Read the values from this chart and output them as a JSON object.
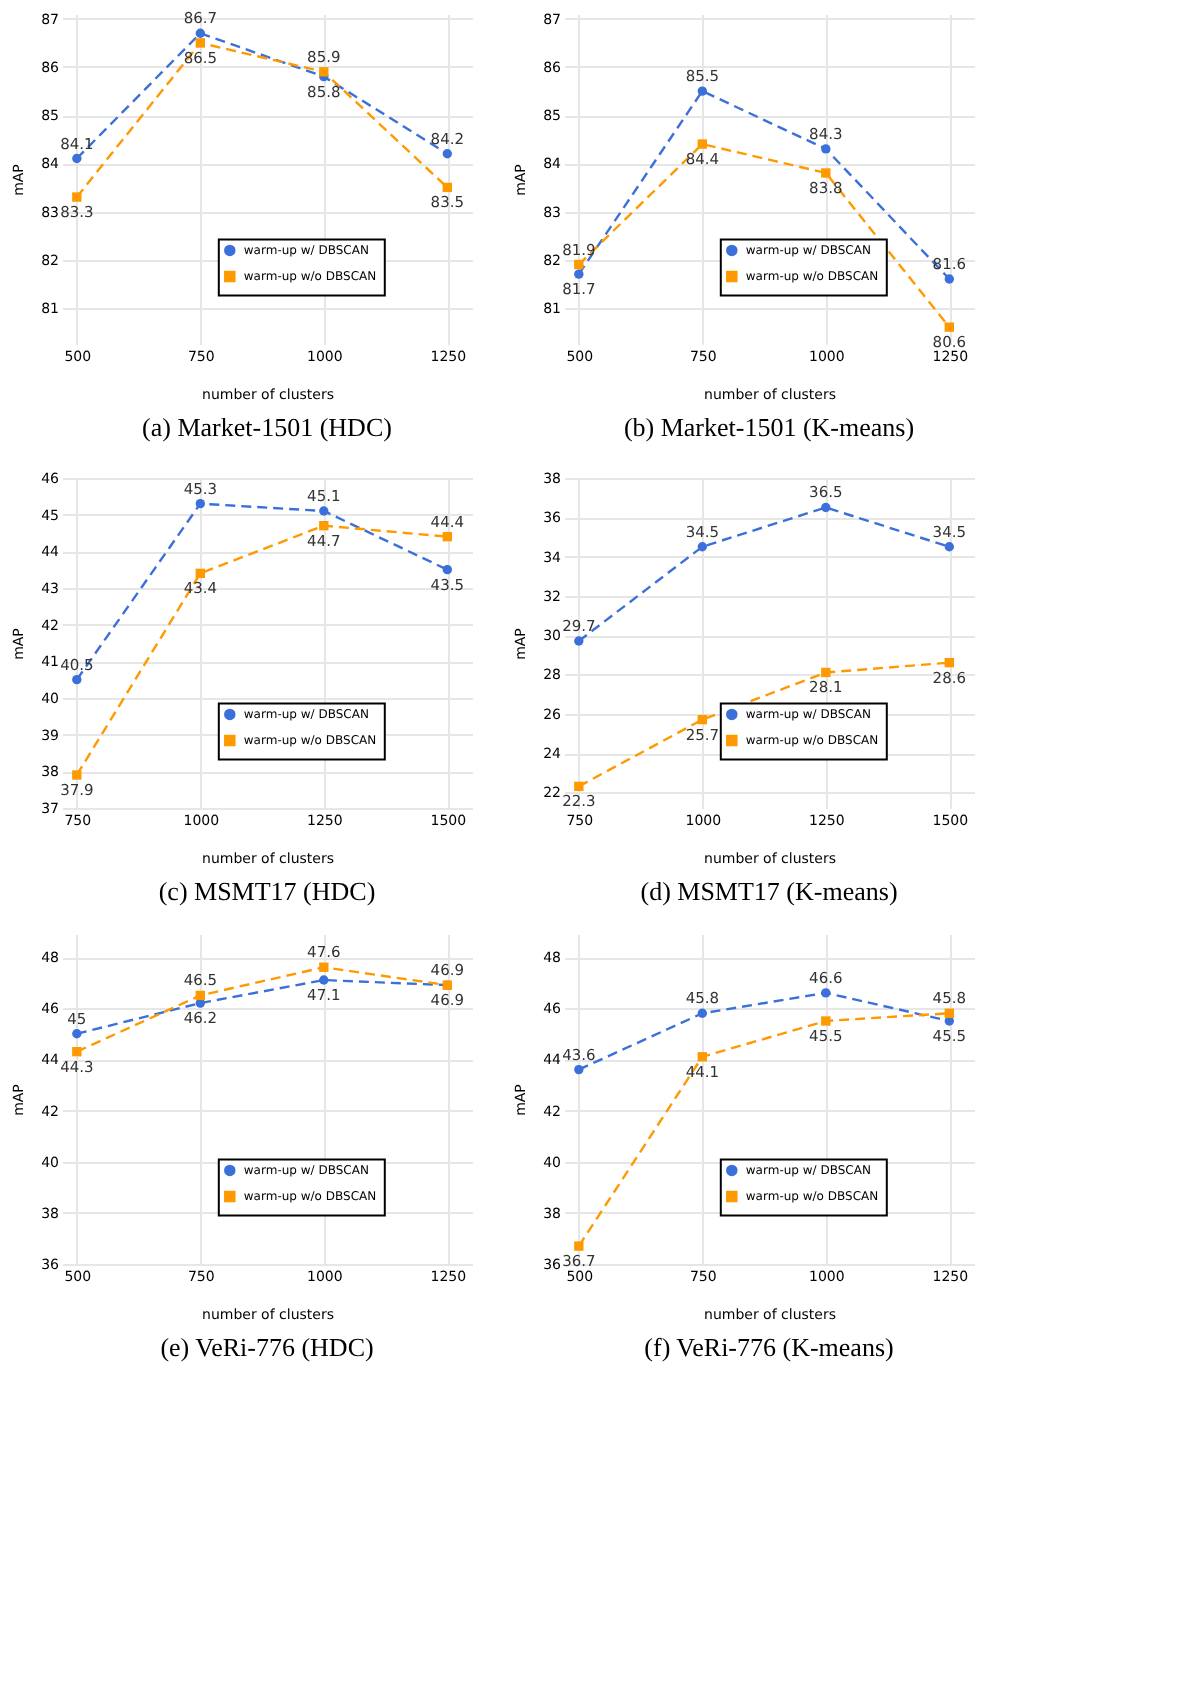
{
  "chart_data": [
    {
      "type": "line",
      "title": "(a) Market-1501 (HDC)",
      "xlabel": "number of clusters",
      "ylabel": "mAP",
      "x": [
        500,
        750,
        1000,
        1250
      ],
      "xlim": [
        470,
        1300
      ],
      "xticks": [
        500,
        750,
        1000,
        1250
      ],
      "ylim": [
        80.25,
        87.1
      ],
      "yticks": [
        81,
        82,
        83,
        84,
        85,
        86,
        87
      ],
      "grid": true,
      "legend": "bottom",
      "data_labels": true,
      "line_style": "dashed",
      "series": [
        {
          "name": "warm-up w/ DBSCAN",
          "color": "#3b6fd9",
          "marker": "circle",
          "values": [
            84.1,
            86.7,
            85.8,
            84.2
          ]
        },
        {
          "name": "warm-up w/o DBSCAN",
          "color": "#ff9900",
          "marker": "square",
          "values": [
            83.3,
            86.5,
            85.9,
            83.5
          ]
        }
      ]
    },
    {
      "type": "line",
      "title": "(b) Market-1501 (K-means)",
      "xlabel": "number of clusters",
      "ylabel": "mAP",
      "x": [
        500,
        750,
        1000,
        1250
      ],
      "xlim": [
        470,
        1300
      ],
      "xticks": [
        500,
        750,
        1000,
        1250
      ],
      "ylim": [
        80.25,
        87.1
      ],
      "yticks": [
        81,
        82,
        83,
        84,
        85,
        86,
        87
      ],
      "grid": true,
      "legend": "bottom",
      "data_labels": true,
      "line_style": "dashed",
      "series": [
        {
          "name": "warm-up w/ DBSCAN",
          "color": "#3b6fd9",
          "marker": "circle",
          "values": [
            81.7,
            85.5,
            84.3,
            81.6
          ]
        },
        {
          "name": "warm-up w/o DBSCAN",
          "color": "#ff9900",
          "marker": "square",
          "values": [
            81.9,
            84.4,
            83.8,
            80.6
          ]
        }
      ]
    },
    {
      "type": "line",
      "title": "(c) MSMT17 (HDC)",
      "xlabel": "number of clusters",
      "ylabel": "mAP",
      "x": [
        750,
        1000,
        1250,
        1500
      ],
      "xlim": [
        720,
        1550
      ],
      "xticks": [
        750,
        1000,
        1250,
        1500
      ],
      "ylim": [
        37,
        46
      ],
      "yticks": [
        37,
        38,
        39,
        40,
        41,
        42,
        43,
        44,
        45,
        46
      ],
      "grid": true,
      "legend": "bottom",
      "data_labels": true,
      "line_style": "dashed",
      "series": [
        {
          "name": "warm-up w/ DBSCAN",
          "color": "#3b6fd9",
          "marker": "circle",
          "values": [
            40.5,
            45.3,
            45.1,
            43.5
          ]
        },
        {
          "name": "warm-up w/o DBSCAN",
          "color": "#ff9900",
          "marker": "square",
          "values": [
            37.9,
            43.4,
            44.7,
            44.4
          ]
        }
      ]
    },
    {
      "type": "line",
      "title": "(d) MSMT17 (K-means)",
      "xlabel": "number of clusters",
      "ylabel": "mAP",
      "x": [
        750,
        1000,
        1250,
        1500
      ],
      "xlim": [
        720,
        1550
      ],
      "xticks": [
        750,
        1000,
        1250,
        1500
      ],
      "ylim": [
        21.2,
        38
      ],
      "yticks": [
        22,
        24,
        26,
        28,
        30,
        32,
        34,
        36,
        38
      ],
      "grid": true,
      "legend": "bottom",
      "data_labels": true,
      "line_style": "dashed",
      "series": [
        {
          "name": "warm-up w/ DBSCAN",
          "color": "#3b6fd9",
          "marker": "circle",
          "values": [
            29.7,
            34.5,
            36.5,
            34.5
          ]
        },
        {
          "name": "warm-up w/o DBSCAN",
          "color": "#ff9900",
          "marker": "square",
          "values": [
            22.3,
            25.7,
            28.1,
            28.6
          ]
        }
      ]
    },
    {
      "type": "line",
      "title": "(e) VeRi-776 (HDC)",
      "xlabel": "number of clusters",
      "ylabel": "mAP",
      "x": [
        500,
        750,
        1000,
        1250
      ],
      "xlim": [
        470,
        1300
      ],
      "xticks": [
        500,
        750,
        1000,
        1250
      ],
      "ylim": [
        36,
        48.9
      ],
      "yticks": [
        36,
        38,
        40,
        42,
        44,
        46,
        48
      ],
      "grid": true,
      "legend": "bottom",
      "data_labels": true,
      "line_style": "dashed",
      "series": [
        {
          "name": "warm-up w/ DBSCAN",
          "color": "#3b6fd9",
          "marker": "circle",
          "values": [
            45,
            46.2,
            47.1,
            46.9
          ]
        },
        {
          "name": "warm-up w/o DBSCAN",
          "color": "#ff9900",
          "marker": "square",
          "values": [
            44.3,
            46.5,
            47.6,
            46.9
          ]
        }
      ]
    },
    {
      "type": "line",
      "title": "(f) VeRi-776 (K-means)",
      "xlabel": "number of clusters",
      "ylabel": "mAP",
      "x": [
        500,
        750,
        1000,
        1250
      ],
      "xlim": [
        470,
        1300
      ],
      "xticks": [
        500,
        750,
        1000,
        1250
      ],
      "ylim": [
        36,
        48.9
      ],
      "yticks": [
        36,
        38,
        40,
        42,
        44,
        46,
        48
      ],
      "grid": true,
      "legend": "bottom",
      "data_labels": true,
      "line_style": "dashed",
      "series": [
        {
          "name": "warm-up w/ DBSCAN",
          "color": "#3b6fd9",
          "marker": "circle",
          "values": [
            43.6,
            45.8,
            46.6,
            45.5
          ]
        },
        {
          "name": "warm-up w/o DBSCAN",
          "color": "#ff9900",
          "marker": "square",
          "values": [
            36.7,
            44.1,
            45.5,
            45.8
          ]
        }
      ]
    }
  ]
}
